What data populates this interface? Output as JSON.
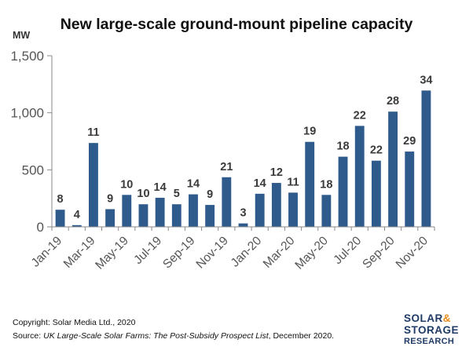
{
  "chart_data": {
    "type": "bar",
    "title": "New large-scale ground-mount pipeline capacity",
    "ylabel": "MW",
    "ylim": [
      0,
      1500
    ],
    "yticks": [
      0,
      500,
      1000,
      1500
    ],
    "ytick_labels": [
      "0",
      "500",
      "1,000",
      "1,500"
    ],
    "categories": [
      "Jan-19",
      "Feb-19",
      "Mar-19",
      "Apr-19",
      "May-19",
      "Jun-19",
      "Jul-19",
      "Aug-19",
      "Sep-19",
      "Oct-19",
      "Nov-19",
      "Dec-19",
      "Jan-20",
      "Feb-20",
      "Mar-20",
      "Apr-20",
      "May-20",
      "Jun-20",
      "Jul-20",
      "Aug-20",
      "Sep-20",
      "Oct-20",
      "Nov-20"
    ],
    "x_tick_labels": [
      "Jan-19",
      "Mar-19",
      "May-19",
      "Jul-19",
      "Sep-19",
      "Nov-19",
      "Jan-20",
      "Mar-20",
      "May-20",
      "Jul-20",
      "Sep-20",
      "Nov-20"
    ],
    "values": [
      150,
      15,
      735,
      155,
      280,
      198,
      255,
      198,
      285,
      192,
      435,
      30,
      290,
      385,
      300,
      745,
      280,
      615,
      885,
      580,
      1010,
      660,
      1195
    ],
    "data_labels": [
      "8",
      "4",
      "11",
      "9",
      "10",
      "10",
      "14",
      "5",
      "14",
      "9",
      "21",
      "3",
      "14",
      "12",
      "11",
      "19",
      "18",
      "18",
      "22",
      "22",
      "28",
      "29",
      "34"
    ],
    "bar_color": "#2e5a8c",
    "grid": false
  },
  "footer": {
    "copyright": "Copyright: Solar Media Ltd., 2020",
    "source_prefix": "Source: ",
    "source_title": "UK Large-Scale Solar Farms: The Post-Subsidy Prospect List",
    "source_suffix": ", December 2020."
  },
  "logo": {
    "line1_a": "SOLAR",
    "line1_amp": "&",
    "line2": "STORAGE",
    "line3": "RESEARCH"
  }
}
